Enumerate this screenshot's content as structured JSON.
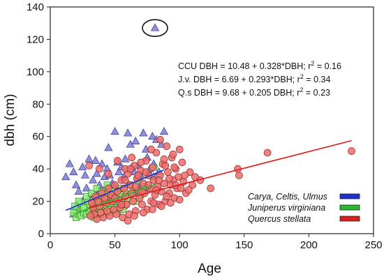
{
  "chart_data": {
    "type": "scatter",
    "title": "",
    "xlabel": "Age",
    "ylabel": "dbh (cm)",
    "xlim": [
      0,
      250
    ],
    "ylim": [
      0,
      140
    ],
    "x_ticks": [
      0,
      50,
      100,
      150,
      200,
      250
    ],
    "y_ticks": [
      0,
      20,
      40,
      60,
      80,
      100,
      120,
      140
    ],
    "grid": false,
    "legend_position": "lower-right",
    "equations": [
      {
        "text": "CCU DBH = 10.48 + 0.328*DBH; r",
        "sup": "2",
        "tail": " = 0.16"
      },
      {
        "text": "J.v. DBH = 6.69 + 0.293*DBH; r",
        "sup": "2",
        "tail": " = 0.34"
      },
      {
        "text": "Q.s DBH = 9.68 + 0.205 DBH; r",
        "sup": "2",
        "tail": " = 0.23"
      }
    ],
    "series": [
      {
        "name": "Carya, Celtis, Ulmus",
        "marker": "triangle",
        "color": "#7b7bd6",
        "edge": "#3a3a8a",
        "line_color": "#1f2fd6",
        "trend": {
          "intercept": 10.48,
          "slope": 0.328,
          "x_range": [
            12,
            88
          ]
        },
        "points": [
          [
            81,
            127
          ],
          [
            12,
            35
          ],
          [
            15,
            43
          ],
          [
            18,
            38
          ],
          [
            20,
            30
          ],
          [
            22,
            26
          ],
          [
            25,
            41
          ],
          [
            27,
            36
          ],
          [
            28,
            28
          ],
          [
            30,
            46
          ],
          [
            31,
            24
          ],
          [
            33,
            33
          ],
          [
            34,
            21
          ],
          [
            35,
            45
          ],
          [
            36,
            37
          ],
          [
            38,
            30
          ],
          [
            39,
            17
          ],
          [
            40,
            43
          ],
          [
            41,
            26
          ],
          [
            42,
            35
          ],
          [
            44,
            40
          ],
          [
            45,
            22
          ],
          [
            46,
            36
          ],
          [
            48,
            31
          ],
          [
            50,
            29
          ],
          [
            52,
            44
          ],
          [
            53,
            38
          ],
          [
            55,
            41
          ],
          [
            57,
            35
          ],
          [
            58,
            46
          ],
          [
            60,
            62
          ],
          [
            62,
            55
          ],
          [
            63,
            41
          ],
          [
            65,
            38
          ],
          [
            66,
            57
          ],
          [
            68,
            42
          ],
          [
            70,
            36
          ],
          [
            72,
            62
          ],
          [
            74,
            52
          ],
          [
            75,
            47
          ],
          [
            77,
            40
          ],
          [
            79,
            60
          ],
          [
            80,
            43
          ],
          [
            82,
            58
          ],
          [
            84,
            38
          ],
          [
            86,
            55
          ],
          [
            88,
            63
          ],
          [
            50,
            63
          ],
          [
            45,
            53
          ],
          [
            38,
            27
          ],
          [
            30,
            19
          ],
          [
            25,
            20
          ],
          [
            20,
            17
          ],
          [
            28,
            14
          ],
          [
            35,
            15
          ],
          [
            40,
            18
          ],
          [
            55,
            22
          ],
          [
            60,
            30
          ],
          [
            65,
            25
          ],
          [
            70,
            30
          ],
          [
            75,
            28
          ],
          [
            80,
            35
          ],
          [
            22,
            14
          ],
          [
            32,
            12
          ],
          [
            42,
            13
          ],
          [
            18,
            12
          ],
          [
            26,
            12
          ],
          [
            48,
            16
          ],
          [
            58,
            19
          ],
          [
            36,
            23
          ],
          [
            44,
            27
          ]
        ]
      },
      {
        "name": "Juniperus virginiana",
        "marker": "square",
        "color": "#8cf07a",
        "edge": "#3a7a2a",
        "line_color": "#29b82e",
        "trend": {
          "intercept": 6.69,
          "slope": 0.293,
          "x_range": [
            18,
            82
          ]
        },
        "points": [
          [
            20,
            10
          ],
          [
            21,
            14
          ],
          [
            22,
            12
          ],
          [
            23,
            18
          ],
          [
            24,
            11
          ],
          [
            25,
            15
          ],
          [
            26,
            13
          ],
          [
            27,
            17
          ],
          [
            28,
            12
          ],
          [
            29,
            20
          ],
          [
            30,
            14
          ],
          [
            31,
            16
          ],
          [
            32,
            11
          ],
          [
            33,
            19
          ],
          [
            34,
            13
          ],
          [
            35,
            22
          ],
          [
            36,
            15
          ],
          [
            37,
            18
          ],
          [
            38,
            12
          ],
          [
            39,
            24
          ],
          [
            40,
            16
          ],
          [
            41,
            20
          ],
          [
            42,
            14
          ],
          [
            43,
            21
          ],
          [
            44,
            17
          ],
          [
            45,
            25
          ],
          [
            46,
            19
          ],
          [
            47,
            15
          ],
          [
            48,
            22
          ],
          [
            49,
            18
          ],
          [
            50,
            27
          ],
          [
            51,
            20
          ],
          [
            52,
            16
          ],
          [
            53,
            23
          ],
          [
            54,
            19
          ],
          [
            55,
            28
          ],
          [
            56,
            21
          ],
          [
            57,
            17
          ],
          [
            58,
            25
          ],
          [
            60,
            22
          ],
          [
            62,
            30
          ],
          [
            64,
            26
          ],
          [
            66,
            20
          ],
          [
            68,
            33
          ],
          [
            70,
            24
          ],
          [
            72,
            29
          ],
          [
            76,
            36
          ],
          [
            80,
            41
          ],
          [
            24,
            19
          ],
          [
            28,
            23
          ],
          [
            32,
            25
          ],
          [
            36,
            28
          ],
          [
            40,
            26
          ],
          [
            44,
            30
          ],
          [
            34,
            10
          ],
          [
            38,
            16
          ],
          [
            42,
            12
          ],
          [
            46,
            13
          ],
          [
            52,
            14
          ],
          [
            56,
            15
          ],
          [
            30,
            18
          ],
          [
            26,
            16
          ],
          [
            22,
            20
          ],
          [
            48,
            26
          ],
          [
            54,
            24
          ],
          [
            58,
            18
          ],
          [
            62,
            24
          ],
          [
            18,
            13
          ],
          [
            19,
            17
          ],
          [
            39,
            13
          ]
        ]
      },
      {
        "name": "Quercus stellata",
        "marker": "circle",
        "color": "#f06c6c",
        "edge": "#8a2a2a",
        "line_color": "#e01b1b",
        "trend": {
          "intercept": 9.68,
          "slope": 0.205,
          "x_range": [
            30,
            233
          ]
        },
        "points": [
          [
            233,
            51
          ],
          [
            168,
            50
          ],
          [
            145,
            40
          ],
          [
            146,
            36
          ],
          [
            124,
            28
          ],
          [
            116,
            33
          ],
          [
            110,
            30
          ],
          [
            108,
            38
          ],
          [
            105,
            25
          ],
          [
            102,
            44
          ],
          [
            100,
            52
          ],
          [
            99,
            35
          ],
          [
            98,
            28
          ],
          [
            97,
            40
          ],
          [
            96,
            22
          ],
          [
            95,
            33
          ],
          [
            94,
            47
          ],
          [
            93,
            30
          ],
          [
            92,
            25
          ],
          [
            91,
            38
          ],
          [
            90,
            54
          ],
          [
            89,
            20
          ],
          [
            88,
            31
          ],
          [
            87,
            43
          ],
          [
            86,
            26
          ],
          [
            85,
            36
          ],
          [
            84,
            18
          ],
          [
            83,
            29
          ],
          [
            82,
            50
          ],
          [
            81,
            24
          ],
          [
            80,
            33
          ],
          [
            79,
            41
          ],
          [
            78,
            20
          ],
          [
            77,
            28
          ],
          [
            76,
            36
          ],
          [
            75,
            15
          ],
          [
            74,
            45
          ],
          [
            73,
            25
          ],
          [
            72,
            31
          ],
          [
            71,
            18
          ],
          [
            70,
            39
          ],
          [
            69,
            22
          ],
          [
            68,
            27
          ],
          [
            67,
            34
          ],
          [
            66,
            14
          ],
          [
            65,
            42
          ],
          [
            64,
            20
          ],
          [
            63,
            25
          ],
          [
            62,
            30
          ],
          [
            61,
            12
          ],
          [
            60,
            37
          ],
          [
            59,
            18
          ],
          [
            58,
            23
          ],
          [
            57,
            28
          ],
          [
            56,
            10
          ],
          [
            55,
            33
          ],
          [
            54,
            16
          ],
          [
            53,
            21
          ],
          [
            52,
            26
          ],
          [
            51,
            12
          ],
          [
            50,
            30
          ],
          [
            49,
            15
          ],
          [
            48,
            20
          ],
          [
            47,
            24
          ],
          [
            46,
            11
          ],
          [
            45,
            28
          ],
          [
            44,
            14
          ],
          [
            43,
            19
          ],
          [
            42,
            22
          ],
          [
            41,
            10
          ],
          [
            40,
            25
          ],
          [
            39,
            13
          ],
          [
            38,
            17
          ],
          [
            37,
            20
          ],
          [
            36,
            9
          ],
          [
            35,
            23
          ],
          [
            34,
            12
          ],
          [
            33,
            16
          ],
          [
            32,
            19
          ],
          [
            31,
            11
          ],
          [
            30,
            42
          ],
          [
            38,
            40
          ],
          [
            45,
            37
          ],
          [
            52,
            45
          ],
          [
            58,
            40
          ],
          [
            63,
            47
          ],
          [
            70,
            44
          ],
          [
            78,
            52
          ],
          [
            85,
            58
          ],
          [
            95,
            49
          ],
          [
            103,
            32
          ],
          [
            107,
            27
          ],
          [
            112,
            35
          ],
          [
            60,
            8
          ],
          [
            65,
            11
          ],
          [
            72,
            13
          ],
          [
            79,
            15
          ],
          [
            86,
            17
          ],
          [
            93,
            19
          ],
          [
            100,
            21
          ],
          [
            92,
            34
          ],
          [
            97,
            30
          ],
          [
            101,
            28
          ],
          [
            89,
            42
          ],
          [
            76,
            30
          ],
          [
            68,
            36
          ],
          [
            62,
            40
          ],
          [
            55,
            18
          ],
          [
            50,
            22
          ],
          [
            82,
            27
          ],
          [
            90,
            23
          ],
          [
            74,
            38
          ],
          [
            66,
            29
          ],
          [
            58,
            33
          ],
          [
            104,
            36
          ],
          [
            88,
            46
          ],
          [
            96,
            41
          ],
          [
            84,
            33
          ],
          [
            80,
            19
          ],
          [
            71,
            26
          ]
        ]
      }
    ],
    "annotations": [
      {
        "type": "ellipse",
        "note": "outlier highlighted",
        "x": 81,
        "y": 127
      }
    ]
  }
}
